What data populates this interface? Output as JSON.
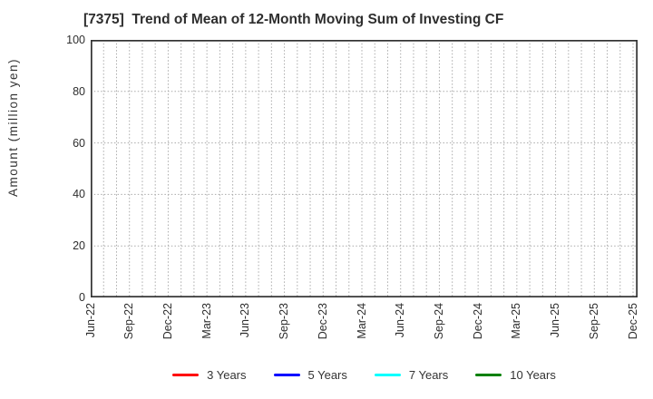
{
  "chart_data": {
    "type": "line",
    "title": "[7375]  Trend of Mean of 12-Month Moving Sum of Investing CF",
    "ylabel": "Amount (million yen)",
    "xlabel": "",
    "ylim": [
      0,
      100
    ],
    "yticks": [
      0,
      20,
      40,
      60,
      80,
      100
    ],
    "x_tick_labels": [
      "Jun-22",
      "Sep-22",
      "Dec-22",
      "Mar-23",
      "Jun-23",
      "Sep-23",
      "Dec-23",
      "Mar-24",
      "Jun-24",
      "Sep-24",
      "Dec-24",
      "Mar-25",
      "Jun-25",
      "Sep-25",
      "Dec-25"
    ],
    "x_label_step_months": 3,
    "x_monthly_count": 43,
    "x_right_pad_months": 0.35,
    "grid": true,
    "grid_style": "dotted",
    "grid_color": "#aaaaaa",
    "axis_color": "#333333",
    "legend_position": "bottom",
    "series": [
      {
        "name": "3 Years",
        "color": "#ff0000",
        "values": []
      },
      {
        "name": "5 Years",
        "color": "#0000ff",
        "values": []
      },
      {
        "name": "7 Years",
        "color": "#00ffff",
        "values": []
      },
      {
        "name": "10 Years",
        "color": "#008000",
        "values": []
      }
    ]
  }
}
